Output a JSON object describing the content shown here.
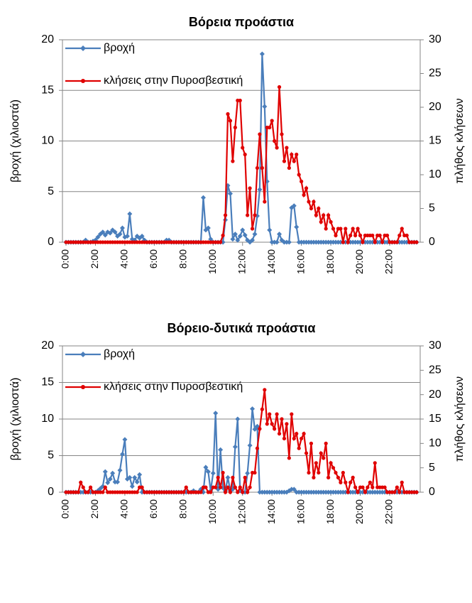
{
  "chart_data": [
    {
      "type": "line",
      "title": "Βόρεια προάστια",
      "ylabel": "βροχή (χιλιοστά)",
      "y2label": "πλήθος κλήσεων",
      "categories": [
        "0:00",
        null,
        null,
        null,
        null,
        null,
        null,
        null,
        null,
        null,
        null,
        null,
        "2:00",
        null,
        null,
        null,
        null,
        null,
        null,
        null,
        null,
        null,
        null,
        null,
        "4:00",
        null,
        null,
        null,
        null,
        null,
        null,
        null,
        null,
        null,
        null,
        null,
        "6:00",
        null,
        null,
        null,
        null,
        null,
        null,
        null,
        null,
        null,
        null,
        null,
        "8:00",
        null,
        null,
        null,
        null,
        null,
        null,
        null,
        null,
        null,
        null,
        null,
        "10:00",
        null,
        null,
        null,
        null,
        null,
        null,
        null,
        null,
        null,
        null,
        null,
        "12:00",
        null,
        null,
        null,
        null,
        null,
        null,
        null,
        null,
        null,
        null,
        null,
        "14:00",
        null,
        null,
        null,
        null,
        null,
        null,
        null,
        null,
        null,
        null,
        null,
        "16:00",
        null,
        null,
        null,
        null,
        null,
        null,
        null,
        null,
        null,
        null,
        null,
        "18:00",
        null,
        null,
        null,
        null,
        null,
        null,
        null,
        null,
        null,
        null,
        null,
        "20:00",
        null,
        null,
        null,
        null,
        null,
        null,
        null,
        null,
        null,
        null,
        null,
        "22:00",
        null,
        null,
        null,
        null,
        null,
        null,
        null,
        null,
        null,
        null,
        null
      ],
      "ylim": [
        0,
        20
      ],
      "yticks": [
        0,
        5,
        10,
        15,
        20
      ],
      "y2lim": [
        0,
        30
      ],
      "y2ticks": [
        0,
        5,
        10,
        15,
        20,
        25,
        30
      ],
      "grid": true,
      "legend": "top-left",
      "series": [
        {
          "name": "βροχή",
          "color": "#4a7ebb",
          "values": [
            0,
            0,
            0,
            0,
            0,
            0,
            0,
            0,
            0.2,
            0,
            0,
            0.1,
            0.2,
            0.5,
            0.8,
            1.0,
            0.7,
            1.0,
            0.9,
            1.2,
            1.0,
            0.6,
            0.8,
            1.4,
            0.5,
            0.6,
            2.8,
            0.3,
            0.2,
            0.6,
            0.4,
            0.6,
            0.2,
            0,
            0,
            0,
            0,
            0,
            0,
            0,
            0,
            0.2,
            0.2,
            0,
            0,
            0,
            0,
            0,
            0,
            0,
            0,
            0,
            0,
            0,
            0,
            0,
            4.4,
            1.2,
            1.4,
            0.3,
            0,
            0,
            0,
            0,
            0,
            2.2,
            5.6,
            4.8,
            0.3,
            0.8,
            0.2,
            0.6,
            1.2,
            0.7,
            0.2,
            0,
            0.2,
            0.8,
            2.6,
            5.2,
            18.6,
            13.4,
            6,
            1.2,
            0,
            0,
            0,
            0.8,
            0.2,
            0,
            0,
            0,
            3.4,
            3.6,
            1.5,
            0,
            0,
            0,
            0,
            0,
            0,
            0,
            0,
            0,
            0,
            0,
            0,
            0,
            0,
            0,
            0,
            0,
            0,
            0,
            0,
            0,
            0,
            0,
            0,
            0,
            0,
            0,
            0,
            0,
            0,
            0,
            0,
            0,
            0,
            0,
            0,
            0,
            0,
            0,
            0,
            0,
            0,
            0,
            0,
            0,
            0,
            0,
            0,
            0
          ]
        },
        {
          "name": "κλήσεις στην Πυροσβεστική",
          "color": "#e00000",
          "axis": "y2",
          "values": [
            0,
            0,
            0,
            0,
            0,
            0,
            0,
            0,
            0,
            0,
            0,
            0,
            0,
            0,
            0,
            0,
            0,
            0,
            0,
            0,
            0,
            0,
            0,
            0,
            0,
            0,
            0,
            0,
            0,
            0,
            0,
            0,
            0,
            0,
            0,
            0,
            0,
            0,
            0,
            0,
            0,
            0,
            0,
            0,
            0,
            0,
            0,
            0,
            0,
            0,
            0,
            0,
            0,
            0,
            0,
            0,
            0,
            0,
            0,
            0,
            0,
            0,
            0,
            0,
            1,
            4,
            19,
            18,
            12,
            17,
            21,
            21,
            14,
            13,
            4,
            8,
            2,
            4,
            11,
            16,
            11,
            6,
            17,
            17,
            18,
            15,
            14,
            23,
            16,
            12,
            14,
            11,
            13,
            12,
            13,
            10,
            9,
            7,
            8,
            6,
            5,
            6,
            4,
            5,
            3,
            4,
            2,
            4,
            3,
            2,
            1,
            2,
            2,
            0,
            2,
            0,
            1,
            2,
            1,
            2,
            1,
            0,
            1,
            1,
            1,
            1,
            0,
            1,
            1,
            0,
            1,
            1,
            0,
            0,
            0,
            0,
            1,
            2,
            1,
            1,
            0,
            0,
            0,
            0
          ]
        }
      ]
    },
    {
      "type": "line",
      "title": "Βόρειο-δυτικά προάστια",
      "ylabel": "βροχή (χιλιοστά)",
      "y2label": "πλήθος κλήσεων",
      "categories": [
        "0:00",
        null,
        null,
        null,
        null,
        null,
        null,
        null,
        null,
        null,
        null,
        null,
        "2:00",
        null,
        null,
        null,
        null,
        null,
        null,
        null,
        null,
        null,
        null,
        null,
        "4:00",
        null,
        null,
        null,
        null,
        null,
        null,
        null,
        null,
        null,
        null,
        null,
        "6:00",
        null,
        null,
        null,
        null,
        null,
        null,
        null,
        null,
        null,
        null,
        null,
        "8:00",
        null,
        null,
        null,
        null,
        null,
        null,
        null,
        null,
        null,
        null,
        null,
        "10:00",
        null,
        null,
        null,
        null,
        null,
        null,
        null,
        null,
        null,
        null,
        null,
        "12:00",
        null,
        null,
        null,
        null,
        null,
        null,
        null,
        null,
        null,
        null,
        null,
        "14:00",
        null,
        null,
        null,
        null,
        null,
        null,
        null,
        null,
        null,
        null,
        null,
        "16:00",
        null,
        null,
        null,
        null,
        null,
        null,
        null,
        null,
        null,
        null,
        null,
        "18:00",
        null,
        null,
        null,
        null,
        null,
        null,
        null,
        null,
        null,
        null,
        null,
        "20:00",
        null,
        null,
        null,
        null,
        null,
        null,
        null,
        null,
        null,
        null,
        null,
        "22:00",
        null,
        null,
        null,
        null,
        null,
        null,
        null,
        null,
        null,
        null,
        null
      ],
      "ylim": [
        0,
        20
      ],
      "yticks": [
        0,
        5,
        10,
        15,
        20
      ],
      "y2lim": [
        0,
        30
      ],
      "y2ticks": [
        0,
        5,
        10,
        15,
        20,
        25,
        30
      ],
      "grid": true,
      "legend": "top-left",
      "series": [
        {
          "name": "βροχή",
          "color": "#4a7ebb",
          "values": [
            0,
            0,
            0,
            0,
            0,
            0,
            0,
            0,
            0,
            0,
            0,
            0,
            0,
            0.2,
            0.5,
            0.8,
            2.8,
            1.3,
            1.8,
            2.6,
            1.4,
            1.4,
            3,
            5.2,
            7.2,
            1.8,
            2,
            0.8,
            2,
            1.4,
            2.4,
            0,
            0,
            0,
            0,
            0,
            0,
            0,
            0,
            0,
            0,
            0,
            0,
            0,
            0,
            0,
            0,
            0,
            0,
            0,
            0,
            0,
            0.2,
            0,
            0,
            0.4,
            0,
            3.4,
            2.8,
            0.2,
            2.6,
            10.8,
            0.4,
            5.8,
            0.6,
            0.2,
            2,
            0.2,
            0.4,
            6.2,
            10,
            0.2,
            0,
            0,
            2.6,
            6.4,
            11.4,
            8.6,
            9,
            0,
            0,
            0,
            0,
            0,
            0,
            0,
            0,
            0,
            0,
            0,
            0,
            0.2,
            0.4,
            0.4,
            0,
            0,
            0,
            0,
            0,
            0,
            0,
            0,
            0,
            0,
            0,
            0,
            0,
            0,
            0,
            0,
            0,
            0,
            0,
            0,
            0,
            0,
            0,
            0,
            0,
            0,
            0,
            0,
            0,
            0,
            0,
            0,
            0,
            0,
            0,
            0,
            0,
            0,
            0,
            0,
            0,
            0,
            0,
            0,
            0,
            0,
            0,
            0,
            0,
            0
          ]
        },
        {
          "name": "κλήσεις στην Πυροσβεστική",
          "color": "#e00000",
          "axis": "y2",
          "values": [
            0,
            0,
            0,
            0,
            0,
            0,
            2,
            1,
            0,
            0,
            1,
            0,
            0,
            0,
            0,
            0,
            1,
            0,
            0,
            0,
            0,
            0,
            0,
            0,
            0,
            0,
            0,
            0,
            0,
            0,
            1,
            1,
            0,
            0,
            0,
            0,
            0,
            0,
            0,
            0,
            0,
            0,
            0,
            0,
            0,
            0,
            0,
            0,
            0,
            1,
            0,
            0,
            0,
            0,
            0,
            0,
            1,
            1,
            0,
            0,
            1,
            1,
            3,
            1,
            4,
            0,
            1,
            0,
            3,
            1,
            0,
            1,
            0,
            3,
            0,
            1,
            4,
            4,
            9,
            13,
            17,
            21,
            14,
            16,
            14,
            13,
            16,
            12,
            15,
            11,
            14,
            7,
            16,
            11,
            12,
            9,
            11,
            12,
            8,
            4,
            10,
            3,
            6,
            4,
            8,
            7,
            10,
            3,
            6,
            5,
            4,
            3,
            2,
            4,
            2,
            0,
            2,
            3,
            1,
            0,
            1,
            1,
            0,
            1,
            2,
            1,
            6,
            1,
            1,
            1,
            1,
            0,
            0,
            0,
            0,
            1,
            0,
            2,
            0,
            0,
            0,
            0,
            0,
            0
          ]
        }
      ]
    }
  ]
}
